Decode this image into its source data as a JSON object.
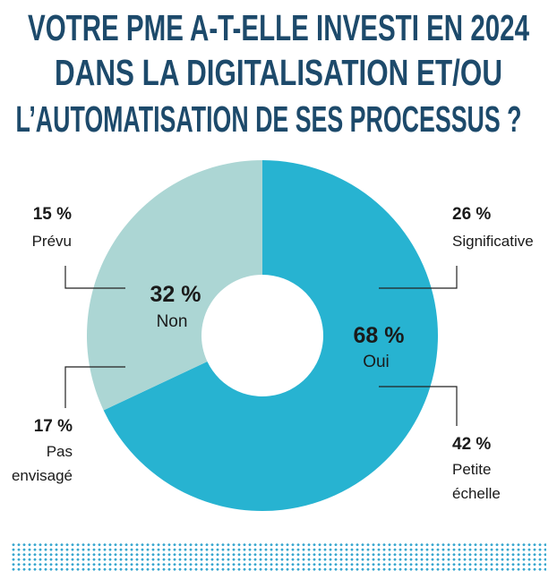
{
  "chart_data": {
    "type": "pie",
    "title": [
      "VOTRE PME A-T-ELLE INVESTI EN 2024",
      "DANS LA DIGITALISATION ET/OU",
      "L’AUTOMATISATION DE SES PROCESSUS ?"
    ],
    "slices": [
      {
        "label": "Oui",
        "value": 68,
        "value_label": "68 %",
        "color": "#27b3d1"
      },
      {
        "label": "Non",
        "value": 32,
        "value_label": "32 %",
        "color": "#acd6d4"
      }
    ],
    "sub_breakdown": [
      {
        "parent": "Oui",
        "label": "Significative",
        "value": 26,
        "value_label": "26 %"
      },
      {
        "parent": "Oui",
        "label": "Petite échelle",
        "label_lines": [
          "Petite",
          "échelle"
        ],
        "value": 42,
        "value_label": "42 %"
      },
      {
        "parent": "Non",
        "label": "Prévu",
        "value": 15,
        "value_label": "15 %"
      },
      {
        "parent": "Non",
        "label": "Pas envisagé",
        "label_lines": [
          "Pas",
          "envisagé"
        ],
        "value": 17,
        "value_label": "17 %"
      }
    ],
    "donut": true,
    "title_color": "#1d4a6b",
    "decoration_color": "#3aa8d0"
  }
}
